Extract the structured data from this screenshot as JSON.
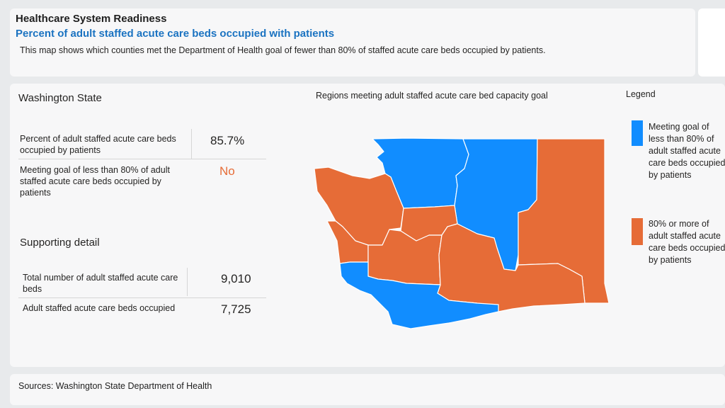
{
  "header": {
    "title": "Healthcare System Readiness",
    "subtitle": "Percent of adult staffed acute care beds occupied with patients",
    "description": "This map shows which counties met the Department of Health goal of fewer than 80% of staffed acute care beds occupied by patients."
  },
  "state": {
    "title": "Washington State",
    "metrics": [
      {
        "label": "Percent of adult staffed acute care beds occupied by patients",
        "value": "85.7%"
      },
      {
        "label": "Meeting goal of less than 80% of adult staffed acute care beds occupied by patients",
        "value": "No"
      }
    ]
  },
  "supporting": {
    "title": "Supporting detail",
    "metrics": [
      {
        "label": "Total number of adult staffed acute care beds",
        "value": "9,010"
      },
      {
        "label": "Adult staffed acute care beds occupied",
        "value": "7,725"
      }
    ]
  },
  "map": {
    "title": "Regions meeting adult staffed acute care bed capacity goal",
    "colors": {
      "meeting": "#118dff",
      "not_meeting": "#e66c37"
    }
  },
  "legend": {
    "title": "Legend",
    "items": [
      {
        "label": "Meeting goal of less than 80% of adult staffed acute care beds occupied by patients",
        "color": "#118dff"
      },
      {
        "label": "80% or more of adult staffed acute care beds occupied by patients",
        "color": "#e66c37"
      }
    ]
  },
  "status_colors": {
    "no": "#e66c37"
  },
  "footer": {
    "sources": "Sources: Washington State Department of Health"
  }
}
